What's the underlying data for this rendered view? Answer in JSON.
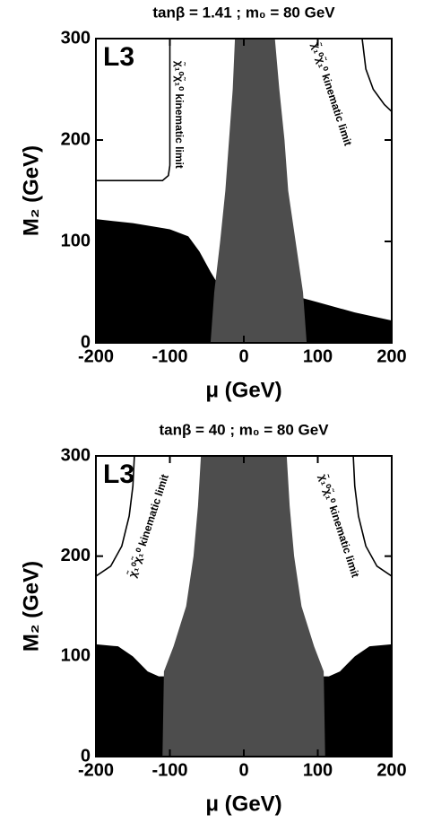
{
  "chart_data": [
    {
      "type": "region",
      "title": "tanβ = 1.41 ; m₀ = 80 GeV",
      "x_label": "μ (GeV)",
      "y_label": "M₂ (GeV)",
      "tag": "L3",
      "xlim": [
        -200,
        200
      ],
      "ylim": [
        0,
        300
      ],
      "xticks": [
        -200,
        -100,
        0,
        100,
        200
      ],
      "yticks": [
        0,
        100,
        200,
        300
      ],
      "excluded_region": {
        "color": "#000000",
        "x": [
          -200,
          -150,
          -100,
          -75,
          -60,
          -45,
          -35,
          -20,
          0,
          50,
          75,
          100,
          150,
          200,
          200,
          -200
        ],
        "y": [
          122,
          118,
          112,
          105,
          90,
          70,
          58,
          50,
          45,
          45,
          45,
          40,
          30,
          22,
          0,
          0
        ]
      },
      "grey_region": {
        "color": "#4d4d4d",
        "x": [
          -12,
          -15,
          -20,
          -25,
          -32,
          -40,
          -45,
          85,
          80,
          70,
          60,
          55,
          48,
          42
        ],
        "y": [
          300,
          250,
          200,
          150,
          100,
          50,
          0,
          0,
          50,
          100,
          150,
          200,
          250,
          300
        ]
      },
      "limit_curves": [
        {
          "color": "#000000",
          "x": [
            -200,
            -110,
            -102,
            -100,
            -100
          ],
          "y": [
            160,
            160,
            165,
            175,
            300
          ]
        },
        {
          "color": "#000000",
          "x": [
            160,
            165,
            175,
            190,
            200
          ],
          "y": [
            300,
            270,
            250,
            235,
            228
          ]
        }
      ],
      "annotations": [
        "χ̃₁⁰χ̃₁⁰ kinematic limit",
        "χ̃₁⁰χ̃₁⁰ kinematic limit"
      ]
    },
    {
      "type": "region",
      "title": "tanβ = 40  ;  m₀ = 80 GeV",
      "x_label": "μ (GeV)",
      "y_label": "M₂ (GeV)",
      "tag": "L3",
      "xlim": [
        -200,
        200
      ],
      "ylim": [
        0,
        300
      ],
      "xticks": [
        -200,
        -100,
        0,
        100,
        200
      ],
      "yticks": [
        0,
        100,
        200,
        300
      ],
      "excluded_region": {
        "color": "#000000",
        "x": [
          -200,
          -170,
          -150,
          -130,
          -115,
          -100,
          0,
          100,
          115,
          130,
          150,
          170,
          200,
          200,
          -200
        ],
        "y": [
          112,
          110,
          100,
          85,
          80,
          80,
          80,
          80,
          80,
          85,
          100,
          110,
          112,
          0,
          0
        ]
      },
      "grey_region": {
        "color": "#4d4d4d",
        "x": [
          -58,
          -62,
          -68,
          -78,
          -95,
          -108,
          -110,
          110,
          108,
          95,
          78,
          68,
          62,
          58
        ],
        "y": [
          300,
          250,
          200,
          150,
          110,
          85,
          0,
          0,
          85,
          110,
          150,
          200,
          250,
          300
        ]
      },
      "limit_curves": [
        {
          "color": "#000000",
          "x": [
            -200,
            -180,
            -165,
            -155,
            -150,
            -148
          ],
          "y": [
            180,
            190,
            210,
            240,
            270,
            300
          ]
        },
        {
          "color": "#000000",
          "x": [
            148,
            150,
            155,
            165,
            180,
            200
          ],
          "y": [
            300,
            270,
            240,
            210,
            190,
            180
          ]
        }
      ],
      "annotations": [
        "χ̃₁⁰χ̃₁⁰ kinematic limit",
        "χ̃₁⁰χ̃₁⁰ kinematic limit"
      ]
    }
  ]
}
